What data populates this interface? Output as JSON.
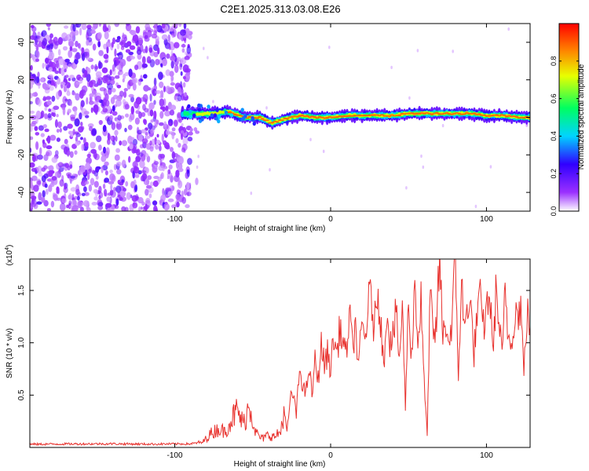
{
  "title": "C2E1.2025.313.03.08.E26",
  "chart_data": [
    {
      "type": "heatmap",
      "title": "C2E1.2025.313.03.08.E26",
      "xlabel": "Height of straight line (km)",
      "ylabel": "Frequency (Hz)",
      "xlim": [
        -193,
        128
      ],
      "ylim": [
        -50,
        50
      ],
      "xticks": [
        -100,
        0,
        100
      ],
      "xtick_labels": [
        "-100",
        "0",
        "100"
      ],
      "yticks": [
        -40,
        -20,
        0,
        20,
        40
      ],
      "ytick_labels": [
        "-40",
        "-20",
        "0",
        "20",
        "40"
      ],
      "colorbar": {
        "label": "Normalized spectral amplitude",
        "range": [
          0,
          1
        ],
        "ticks": [
          0,
          0.2,
          0.4,
          0.6,
          0.8
        ],
        "tick_labels": [
          "0.0",
          "0.2",
          "0.4",
          "0.6",
          "0.8"
        ],
        "colormap": [
          "#ffffff",
          "#9b30ff",
          "#3000ff",
          "#00d4ff",
          "#00ff60",
          "#e8ff00",
          "#ff8000",
          "#ff0000"
        ]
      },
      "noise_region_x": [
        -193,
        -90
      ],
      "ridge": {
        "x": [
          -95,
          -85,
          -75,
          -65,
          -55,
          -45,
          -38,
          -30,
          -20,
          -10,
          0,
          10,
          20,
          30,
          40,
          50,
          60,
          70,
          80,
          90,
          100,
          110,
          120,
          128
        ],
        "freq": [
          2,
          2,
          2,
          3,
          0,
          0,
          -3,
          -1,
          1,
          0,
          0,
          1,
          1,
          1,
          1,
          2,
          2,
          2,
          2,
          2,
          1,
          1,
          0,
          0
        ],
        "amplitude": [
          0.5,
          0.7,
          0.8,
          0.85,
          0.9,
          0.95,
          0.9,
          0.95,
          1,
          1,
          1,
          1,
          1,
          1,
          1,
          1,
          1,
          1,
          1,
          1,
          1,
          1,
          1,
          0.9
        ]
      }
    },
    {
      "type": "line",
      "xlabel": "Height of straight line (km)",
      "ylabel": "SNR (10 * v/v)",
      "y_multiplier_label": "(x10",
      "y_multiplier_exp": "4",
      "y_multiplier_close": ")",
      "xlim": [
        -193,
        128
      ],
      "ylim": [
        0,
        18000
      ],
      "xticks": [
        -100,
        0,
        100
      ],
      "xtick_labels": [
        "-100",
        "0",
        "100"
      ],
      "yticks": [
        5000,
        10000,
        15000
      ],
      "ytick_labels": [
        "0.5",
        "1.0",
        "1.5"
      ],
      "color": "#e8322e",
      "series": [
        {
          "name": "SNR",
          "x": [
            -193,
            -180,
            -160,
            -140,
            -120,
            -100,
            -90,
            -82,
            -78,
            -72,
            -68,
            -64,
            -60,
            -56,
            -52,
            -48,
            -44,
            -40,
            -36,
            -32,
            -30,
            -28,
            -26,
            -24,
            -22,
            -20,
            -18,
            -16,
            -14,
            -12,
            -10,
            -8,
            -6,
            -4,
            -2,
            0,
            2,
            4,
            6,
            8,
            10,
            12,
            14,
            16,
            18,
            20,
            22,
            24,
            26,
            28,
            30,
            32,
            34,
            36,
            38,
            40,
            42,
            44,
            46,
            48,
            50,
            52,
            54,
            56,
            58,
            60,
            62,
            64,
            66,
            68,
            70,
            72,
            74,
            76,
            78,
            80,
            82,
            84,
            86,
            88,
            90,
            92,
            94,
            96,
            98,
            100,
            102,
            104,
            106,
            108,
            110,
            112,
            114,
            116,
            118,
            120,
            122,
            124,
            126,
            128
          ],
          "values": [
            300,
            320,
            340,
            350,
            320,
            330,
            350,
            500,
            1200,
            1800,
            1500,
            2600,
            3500,
            2200,
            4200,
            1400,
            800,
            1200,
            1000,
            1500,
            3800,
            1400,
            4500,
            5200,
            3000,
            7500,
            6200,
            4800,
            7800,
            5000,
            8200,
            6500,
            9800,
            7800,
            9000,
            7600,
            10500,
            8900,
            11500,
            10000,
            8800,
            12700,
            9500,
            11800,
            7300,
            12000,
            10100,
            13500,
            14500,
            11000,
            15400,
            12500,
            7500,
            13500,
            10200,
            10600,
            12800,
            8500,
            13000,
            4000,
            14000,
            8600,
            16000,
            10000,
            14000,
            6000,
            1300,
            15000,
            9700,
            12100,
            18000,
            10500,
            12000,
            9800,
            12500,
            17800,
            7000,
            15700,
            10700,
            14300,
            13000,
            9000,
            12600,
            14000,
            11500,
            13000,
            15200,
            9000,
            14500,
            12300,
            8400,
            14800,
            10500,
            10100,
            13000,
            12800,
            13500,
            7100,
            12800,
            11500
          ]
        }
      ]
    }
  ]
}
